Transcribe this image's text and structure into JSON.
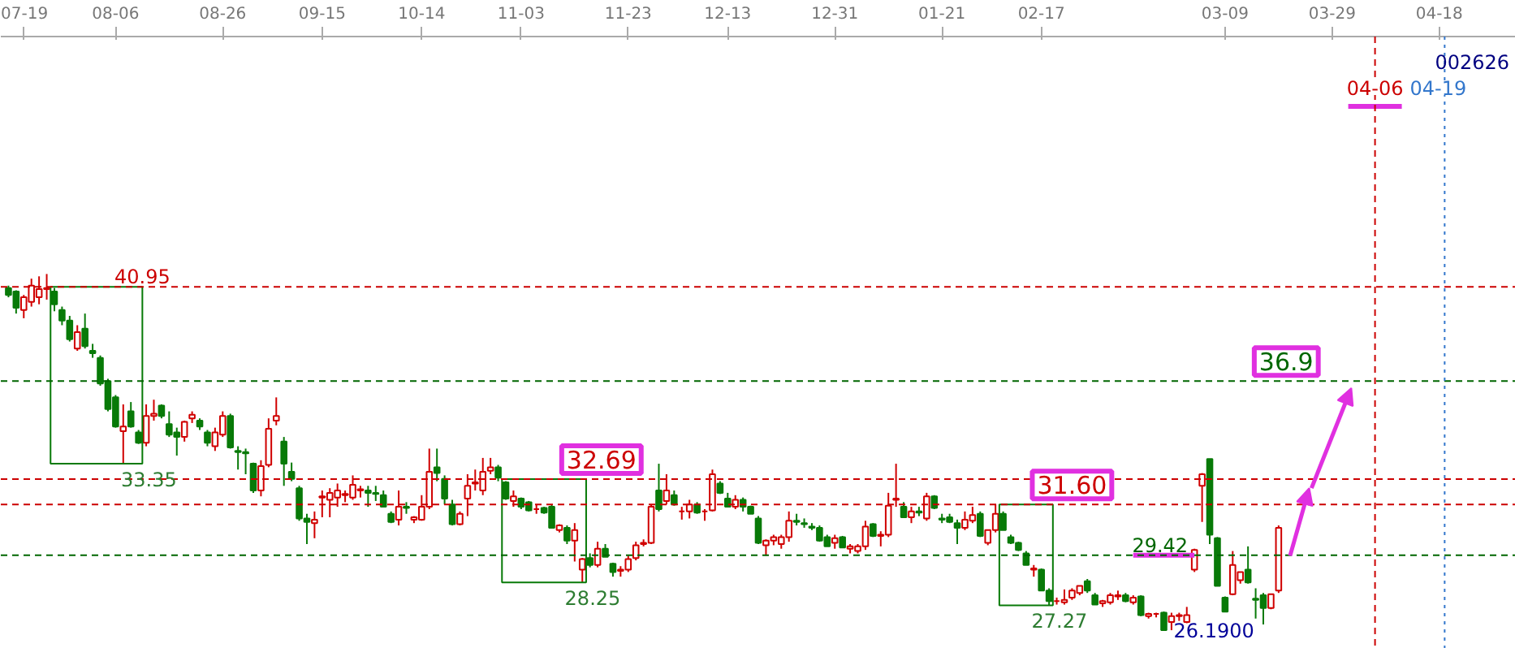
{
  "chart_data": {
    "type": "candlestick",
    "categories": [
      null,
      null,
      "07-19",
      null,
      null,
      null,
      null,
      null,
      null,
      null,
      null,
      null,
      null,
      null,
      "08-06",
      null,
      null,
      null,
      null,
      null,
      null,
      null,
      null,
      null,
      null,
      null,
      null,
      null,
      "08-26",
      null,
      null,
      null,
      null,
      null,
      null,
      null,
      null,
      null,
      null,
      null,
      null,
      "09-15",
      null,
      null,
      null,
      null,
      null,
      null,
      null,
      null,
      null,
      null,
      null,
      null,
      "10-14",
      null,
      null,
      null,
      null,
      null,
      null,
      null,
      null,
      null,
      null,
      null,
      null,
      "11-03",
      null,
      null,
      null,
      null,
      null,
      null,
      null,
      null,
      null,
      null,
      null,
      null,
      null,
      "11-23",
      null,
      null,
      null,
      null,
      null,
      null,
      null,
      null,
      null,
      null,
      null,
      null,
      "12-13",
      null,
      null,
      null,
      null,
      null,
      null,
      null,
      null,
      null,
      null,
      null,
      null,
      null,
      "12-31",
      null,
      null,
      null,
      null,
      null,
      null,
      null,
      null,
      null,
      null,
      null,
      null,
      null,
      "01-21",
      null,
      null,
      null,
      null,
      null,
      null,
      null,
      null,
      null,
      null,
      null,
      null,
      "02-17",
      null,
      null,
      null,
      null,
      null,
      null,
      null,
      null,
      null,
      null,
      null,
      null,
      null,
      null,
      null,
      null,
      null,
      null,
      null,
      null,
      null,
      null,
      null,
      "03-09",
      null,
      null,
      null,
      null,
      null,
      null,
      null,
      null,
      null,
      null,
      null,
      null,
      null,
      "03-29",
      null,
      null,
      null,
      null,
      null,
      null,
      null,
      null,
      null,
      null,
      null,
      null,
      null,
      "04-18",
      null,
      null,
      null,
      null,
      null,
      null,
      null,
      null,
      null
    ],
    "ohlc": [
      [
        40.9,
        41.0,
        40.5,
        40.6
      ],
      [
        40.75,
        40.8,
        39.8,
        40.05
      ],
      [
        39.95,
        40.6,
        39.6,
        40.5
      ],
      [
        40.3,
        41.3,
        40.1,
        41.0
      ],
      [
        40.5,
        41.4,
        40.2,
        40.85
      ],
      [
        40.85,
        41.5,
        40.4,
        40.9
      ],
      [
        40.75,
        40.9,
        39.9,
        40.2
      ],
      [
        39.95,
        40.1,
        39.3,
        39.5
      ],
      [
        39.5,
        39.7,
        38.6,
        38.7
      ],
      [
        38.3,
        39.3,
        38.2,
        39.0
      ],
      [
        39.15,
        39.8,
        38.3,
        38.4
      ],
      [
        38.2,
        38.5,
        37.9,
        38.1
      ],
      [
        37.9,
        38.0,
        36.7,
        36.8
      ],
      [
        36.9,
        37.0,
        35.6,
        35.7
      ],
      [
        36.2,
        36.3,
        34.9,
        34.95
      ],
      [
        34.75,
        35.9,
        33.35,
        34.95
      ],
      [
        35.6,
        36.0,
        34.9,
        34.95
      ],
      [
        34.7,
        34.8,
        34.2,
        34.25
      ],
      [
        34.25,
        35.9,
        34.1,
        35.4
      ],
      [
        35.4,
        36.1,
        35.2,
        35.5
      ],
      [
        35.85,
        35.9,
        35.3,
        35.4
      ],
      [
        35.05,
        35.6,
        34.5,
        34.6
      ],
      [
        34.7,
        34.9,
        33.7,
        34.5
      ],
      [
        34.5,
        35.2,
        34.3,
        35.15
      ],
      [
        35.3,
        35.6,
        35.1,
        35.45
      ],
      [
        35.2,
        35.3,
        34.8,
        34.95
      ],
      [
        34.7,
        34.8,
        34.1,
        34.25
      ],
      [
        34.1,
        34.9,
        33.9,
        34.7
      ],
      [
        34.6,
        35.6,
        34.5,
        35.4
      ],
      [
        35.4,
        35.5,
        34.0,
        34.05
      ],
      [
        33.9,
        34.1,
        33.1,
        33.85
      ],
      [
        33.85,
        34.0,
        32.9,
        33.8
      ],
      [
        33.35,
        33.4,
        32.1,
        32.2
      ],
      [
        32.2,
        33.5,
        31.95,
        33.25
      ],
      [
        33.3,
        35.3,
        33.2,
        34.85
      ],
      [
        35.2,
        36.2,
        35.0,
        35.4
      ],
      [
        34.3,
        34.5,
        32.4,
        33.35
      ],
      [
        33.0,
        33.4,
        32.6,
        32.7
      ],
      [
        32.3,
        32.4,
        30.9,
        31.0
      ],
      [
        31.0,
        31.2,
        29.9,
        30.85
      ],
      [
        30.8,
        31.3,
        30.15,
        30.95
      ],
      [
        31.9,
        32.2,
        31.05,
        31.95
      ],
      [
        31.8,
        32.3,
        31.05,
        32.1
      ],
      [
        31.9,
        32.5,
        31.5,
        32.2
      ],
      [
        32.0,
        32.2,
        31.7,
        32.05
      ],
      [
        31.9,
        32.85,
        31.8,
        32.45
      ],
      [
        32.2,
        32.4,
        31.9,
        32.25
      ],
      [
        32.2,
        32.4,
        31.5,
        32.1
      ],
      [
        32.1,
        32.4,
        31.75,
        32.05
      ],
      [
        32.0,
        32.2,
        31.5,
        31.5
      ],
      [
        31.2,
        31.3,
        30.8,
        30.85
      ],
      [
        30.95,
        32.2,
        30.7,
        31.5
      ],
      [
        31.5,
        31.7,
        31.2,
        31.45
      ],
      [
        30.95,
        31.1,
        30.8,
        31.05
      ],
      [
        30.95,
        32.0,
        30.9,
        31.5
      ],
      [
        31.5,
        34.0,
        31.4,
        33.0
      ],
      [
        33.2,
        34.0,
        32.6,
        32.95
      ],
      [
        32.7,
        32.85,
        31.6,
        31.85
      ],
      [
        31.6,
        31.8,
        30.7,
        30.75
      ],
      [
        30.75,
        31.3,
        30.7,
        31.2
      ],
      [
        31.85,
        32.9,
        31.1,
        32.4
      ],
      [
        32.5,
        33.1,
        32.2,
        32.55
      ],
      [
        32.2,
        33.6,
        32.0,
        33.0
      ],
      [
        33.05,
        33.6,
        32.9,
        33.2
      ],
      [
        33.2,
        33.3,
        32.6,
        32.75
      ],
      [
        32.55,
        32.6,
        31.8,
        31.85
      ],
      [
        31.75,
        32.2,
        31.5,
        31.95
      ],
      [
        31.85,
        31.9,
        31.4,
        31.5
      ],
      [
        31.7,
        31.75,
        31.3,
        31.35
      ],
      [
        31.4,
        31.6,
        31.2,
        31.4
      ],
      [
        31.45,
        31.5,
        31.2,
        31.25
      ],
      [
        31.5,
        31.6,
        30.6,
        30.6
      ],
      [
        30.5,
        30.75,
        30.4,
        30.7
      ],
      [
        30.6,
        30.7,
        29.9,
        30.05
      ],
      [
        30.05,
        30.8,
        29.15,
        30.5
      ],
      [
        28.8,
        29.3,
        28.25,
        29.25
      ],
      [
        29.3,
        29.5,
        28.9,
        29.0
      ],
      [
        29.0,
        30.0,
        28.9,
        29.7
      ],
      [
        29.7,
        29.9,
        29.35,
        29.35
      ],
      [
        29.05,
        29.1,
        28.5,
        28.7
      ],
      [
        28.75,
        28.95,
        28.5,
        28.8
      ],
      [
        28.8,
        29.4,
        28.7,
        29.25
      ],
      [
        29.3,
        30.0,
        29.2,
        29.85
      ],
      [
        29.9,
        30.1,
        29.8,
        29.95
      ],
      [
        29.95,
        31.6,
        29.9,
        31.5
      ],
      [
        32.2,
        33.35,
        31.3,
        31.4
      ],
      [
        31.75,
        32.9,
        31.6,
        32.2
      ],
      [
        32.0,
        32.2,
        31.55,
        31.6
      ],
      [
        31.3,
        31.5,
        30.95,
        31.3
      ],
      [
        31.3,
        31.8,
        31.0,
        31.6
      ],
      [
        31.6,
        31.7,
        31.2,
        31.25
      ],
      [
        31.3,
        31.4,
        30.9,
        31.3
      ],
      [
        31.35,
        33.1,
        31.3,
        32.9
      ],
      [
        32.5,
        32.6,
        32.05,
        32.1
      ],
      [
        31.85,
        32.1,
        31.5,
        31.5
      ],
      [
        31.5,
        32.0,
        31.4,
        31.8
      ],
      [
        31.8,
        31.9,
        31.3,
        31.5
      ],
      [
        31.5,
        31.55,
        31.2,
        31.2
      ],
      [
        31.0,
        31.1,
        29.9,
        29.95
      ],
      [
        29.85,
        30.1,
        29.4,
        30.05
      ],
      [
        30.05,
        30.3,
        29.85,
        30.2
      ],
      [
        29.9,
        30.3,
        29.7,
        30.2
      ],
      [
        30.2,
        31.3,
        30.0,
        30.9
      ],
      [
        30.9,
        31.2,
        30.7,
        30.85
      ],
      [
        30.8,
        31.0,
        30.6,
        30.75
      ],
      [
        30.65,
        30.8,
        30.5,
        30.6
      ],
      [
        30.6,
        30.7,
        30.0,
        30.05
      ],
      [
        30.2,
        30.3,
        29.8,
        29.8
      ],
      [
        29.95,
        30.3,
        29.7,
        30.15
      ],
      [
        30.2,
        30.25,
        29.75,
        29.75
      ],
      [
        29.7,
        29.9,
        29.5,
        29.8
      ],
      [
        29.6,
        29.9,
        29.5,
        29.8
      ],
      [
        29.8,
        30.9,
        29.65,
        30.65
      ],
      [
        30.75,
        30.8,
        30.2,
        30.25
      ],
      [
        30.25,
        30.45,
        29.8,
        30.3
      ],
      [
        30.3,
        32.1,
        30.2,
        31.55
      ],
      [
        31.8,
        33.35,
        31.5,
        31.85
      ],
      [
        31.5,
        31.7,
        31.05,
        31.05
      ],
      [
        31.05,
        31.5,
        30.8,
        31.3
      ],
      [
        31.3,
        31.5,
        31.1,
        31.25
      ],
      [
        31.0,
        32.1,
        30.9,
        31.95
      ],
      [
        31.95,
        32.0,
        31.4,
        31.45
      ],
      [
        31.0,
        31.2,
        30.8,
        30.95
      ],
      [
        31.05,
        31.2,
        30.8,
        30.85
      ],
      [
        30.8,
        30.95,
        29.9,
        30.6
      ],
      [
        30.6,
        31.3,
        30.5,
        30.95
      ],
      [
        30.9,
        31.5,
        30.8,
        31.15
      ],
      [
        31.2,
        31.3,
        30.2,
        30.25
      ],
      [
        29.95,
        30.5,
        29.85,
        30.5
      ],
      [
        30.5,
        31.6,
        30.4,
        31.2
      ],
      [
        31.2,
        31.3,
        30.5,
        30.5
      ],
      [
        30.2,
        30.3,
        29.9,
        29.95
      ],
      [
        29.95,
        30.0,
        29.6,
        29.65
      ],
      [
        29.5,
        29.6,
        29.0,
        29.0
      ],
      [
        28.8,
        29.0,
        28.5,
        28.85
      ],
      [
        28.8,
        28.85,
        27.9,
        27.9
      ],
      [
        27.9,
        28.0,
        27.27,
        27.45
      ],
      [
        27.45,
        27.6,
        27.3,
        27.45
      ],
      [
        27.4,
        27.95,
        27.3,
        27.5
      ],
      [
        27.6,
        28.0,
        27.5,
        27.9
      ],
      [
        27.8,
        28.1,
        27.7,
        28.1
      ],
      [
        28.3,
        28.4,
        27.8,
        27.9
      ],
      [
        27.7,
        27.8,
        27.3,
        27.3
      ],
      [
        27.35,
        27.5,
        27.2,
        27.45
      ],
      [
        27.4,
        27.8,
        27.3,
        27.7
      ],
      [
        27.65,
        27.9,
        27.5,
        27.7
      ],
      [
        27.7,
        27.8,
        27.4,
        27.45
      ],
      [
        27.4,
        27.7,
        27.3,
        27.6
      ],
      [
        27.65,
        27.7,
        26.8,
        26.85
      ],
      [
        26.8,
        26.95,
        26.7,
        26.9
      ],
      [
        26.9,
        26.95,
        26.75,
        26.9
      ],
      [
        26.95,
        27.0,
        26.19,
        26.2
      ],
      [
        26.55,
        26.95,
        26.2,
        26.8
      ],
      [
        26.8,
        26.95,
        26.6,
        26.85
      ],
      [
        26.55,
        27.2,
        26.5,
        26.85
      ],
      [
        28.8,
        29.7,
        28.7,
        29.65
      ],
      [
        32.4,
        32.95,
        30.85,
        32.9
      ],
      [
        33.55,
        33.55,
        29.9,
        30.3
      ],
      [
        30.15,
        30.2,
        28.1,
        28.1
      ],
      [
        27.6,
        27.65,
        27.0,
        27.0
      ],
      [
        27.75,
        29.6,
        27.7,
        29.0
      ],
      [
        28.35,
        28.7,
        28.2,
        28.7
      ],
      [
        28.8,
        29.8,
        28.2,
        28.25
      ],
      [
        27.55,
        28.0,
        26.7,
        27.5
      ],
      [
        27.7,
        27.8,
        26.45,
        27.15
      ],
      [
        27.15,
        27.75,
        27.1,
        27.75
      ],
      [
        27.9,
        30.7,
        27.8,
        30.6
      ],
      null,
      null,
      null,
      null,
      null,
      null,
      null,
      null,
      null,
      null,
      null,
      null,
      null,
      null,
      null,
      null,
      null,
      null,
      null,
      null,
      null,
      null,
      null,
      null,
      null,
      null,
      null,
      null,
      null,
      null
    ],
    "ylim": [
      25.4,
      51.7
    ],
    "tick_labels": "x",
    "ref_lines": [
      {
        "axis": "y",
        "value": 40.95,
        "label": "40.95",
        "color": "#cc0000",
        "line_style": "dashed"
      },
      {
        "axis": "y",
        "value": 36.9,
        "label": "36.9",
        "color": "#006600",
        "line_style": "dashed"
      },
      {
        "axis": "y",
        "value": 32.69,
        "label": "32.69",
        "color": "#cc0000",
        "line_style": "dashed"
      },
      {
        "axis": "y",
        "value": 31.6,
        "label": "31.60",
        "color": "#cc0000",
        "line_style": "dashed"
      },
      {
        "axis": "y",
        "value": 29.42,
        "label": "29.42",
        "color": "#006600",
        "line_style": "dashed"
      },
      {
        "axis": "x",
        "value": "04-06",
        "color": "#cc0000",
        "line_style": "dashed"
      },
      {
        "axis": "x",
        "value": "04-19",
        "color": "#3377cc",
        "line_style": "dotted"
      }
    ],
    "annotations": [
      "002626",
      "33.35",
      "28.25",
      "27.27",
      "26.1900"
    ]
  }
}
